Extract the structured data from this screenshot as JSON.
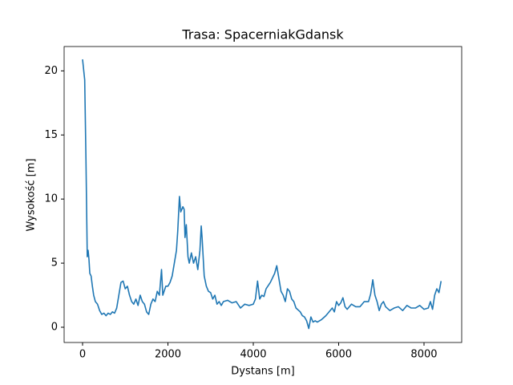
{
  "chart_data": {
    "type": "line",
    "title": "Trasa: SpacerniakGdansk",
    "x_label": "Dystans [m]",
    "y_label": "Wysokość [m]",
    "xlim": [
      -432,
      8883
    ],
    "ylim": [
      -1.19,
      21.9
    ],
    "xticks": [
      0,
      2000,
      4000,
      6000,
      8000
    ],
    "yticks": [
      0,
      5,
      10,
      15,
      20
    ],
    "series": [
      {
        "name": "Wysokość",
        "color": "#1f77b4",
        "x": [
          0,
          50,
          80,
          100,
          110,
          130,
          150,
          170,
          200,
          230,
          260,
          300,
          350,
          400,
          450,
          500,
          550,
          600,
          650,
          700,
          750,
          800,
          850,
          900,
          950,
          1000,
          1050,
          1100,
          1150,
          1200,
          1250,
          1300,
          1350,
          1400,
          1450,
          1500,
          1550,
          1600,
          1650,
          1700,
          1750,
          1800,
          1850,
          1880,
          1950,
          2000,
          2050,
          2100,
          2150,
          2200,
          2230,
          2270,
          2300,
          2350,
          2380,
          2400,
          2430,
          2470,
          2500,
          2550,
          2600,
          2650,
          2700,
          2750,
          2780,
          2800,
          2850,
          2900,
          2950,
          3000,
          3050,
          3100,
          3150,
          3200,
          3250,
          3300,
          3400,
          3500,
          3600,
          3700,
          3800,
          3900,
          4000,
          4050,
          4100,
          4150,
          4200,
          4250,
          4300,
          4400,
          4500,
          4550,
          4600,
          4650,
          4700,
          4750,
          4800,
          4850,
          4900,
          4950,
          5000,
          5100,
          5150,
          5200,
          5250,
          5300,
          5350,
          5400,
          5450,
          5500,
          5600,
          5700,
          5800,
          5850,
          5900,
          5950,
          6000,
          6050,
          6100,
          6150,
          6200,
          6300,
          6400,
          6500,
          6600,
          6700,
          6750,
          6800,
          6850,
          6900,
          6950,
          7000,
          7050,
          7100,
          7200,
          7300,
          7400,
          7500,
          7600,
          7700,
          7800,
          7900,
          8000,
          8100,
          8150,
          8200,
          8250,
          8300,
          8350,
          8400
        ],
        "values": [
          20.9,
          19.3,
          13,
          8,
          5.5,
          6,
          5.3,
          4.2,
          4,
          3.2,
          2.5,
          2,
          1.8,
          1.3,
          1,
          1.1,
          0.9,
          1.1,
          1,
          1.2,
          1.1,
          1.5,
          2.5,
          3.5,
          3.6,
          3,
          3.2,
          2.5,
          2,
          1.8,
          2.2,
          1.7,
          2.5,
          2,
          1.8,
          1.2,
          1,
          1.8,
          2.2,
          2,
          2.8,
          2.5,
          4.5,
          2.5,
          3.2,
          3.2,
          3.5,
          4,
          5,
          6,
          7.5,
          10.2,
          9,
          9.4,
          9.2,
          7,
          8,
          5.5,
          5,
          5.8,
          5,
          5.5,
          4.5,
          6,
          7.9,
          7,
          4,
          3.2,
          2.8,
          2.7,
          2.2,
          2.5,
          1.8,
          2,
          1.7,
          2,
          2.1,
          1.9,
          2,
          1.5,
          1.8,
          1.7,
          1.8,
          2.2,
          3.6,
          2.2,
          2.5,
          2.4,
          3,
          3.5,
          4.2,
          4.8,
          3.8,
          2.8,
          2.5,
          2,
          3,
          2.8,
          2.2,
          2,
          1.5,
          1.2,
          0.9,
          0.8,
          0.5,
          -0.1,
          0.8,
          0.4,
          0.5,
          0.4,
          0.6,
          0.9,
          1.3,
          1.5,
          1.2,
          2,
          1.7,
          1.9,
          2.3,
          1.6,
          1.4,
          1.8,
          1.6,
          1.6,
          2,
          2,
          2.6,
          3.7,
          2.5,
          2,
          1.3,
          1.8,
          2,
          1.6,
          1.3,
          1.5,
          1.6,
          1.3,
          1.7,
          1.5,
          1.5,
          1.7,
          1.4,
          1.5,
          2,
          1.4,
          2.5,
          3,
          2.7,
          3.6
        ]
      }
    ]
  }
}
